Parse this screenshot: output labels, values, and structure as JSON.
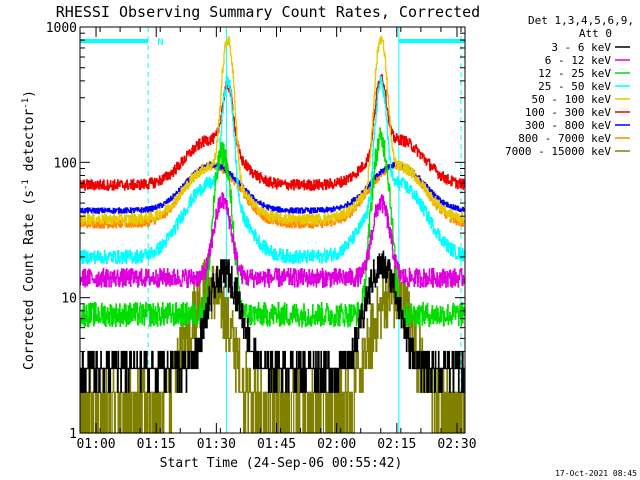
{
  "chart_data": {
    "type": "line",
    "title": "RHESSI Observing Summary Count Rates, Corrected",
    "xlabel": "Start Time (24-Sep-06 00:55:42)",
    "ylabel_parts": [
      "Corrected Count Rate (s",
      "-1",
      " detector",
      "-1",
      ")"
    ],
    "x_unit": "minutes of day (HH:MM)",
    "xlim": [
      56,
      152
    ],
    "ylim": [
      1,
      1000
    ],
    "y_scale": "log",
    "x_ticks": [
      {
        "value": 60,
        "label": "01:00"
      },
      {
        "value": 75,
        "label": "01:15"
      },
      {
        "value": 90,
        "label": "01:30"
      },
      {
        "value": 105,
        "label": "01:45"
      },
      {
        "value": 120,
        "label": "02:00"
      },
      {
        "value": 135,
        "label": "02:15"
      },
      {
        "value": 150,
        "label": "02:30"
      }
    ],
    "y_ticks": [
      {
        "value": 1,
        "label": "1"
      },
      {
        "value": 10,
        "label": "10"
      },
      {
        "value": 100,
        "label": "100"
      },
      {
        "value": 1000,
        "label": "1000"
      }
    ],
    "legend": {
      "placement": "right",
      "header": [
        "Det 1,3,4,5,6,9,",
        "Att 0"
      ]
    },
    "night_bars": [
      [
        56,
        73
      ],
      [
        135.5,
        152
      ]
    ],
    "night_label": "N",
    "night_label_x": 75.3,
    "dashed_lines": [
      73,
      151
    ],
    "solid_lines": [
      92.5,
      135.5
    ],
    "series": [
      {
        "name": "3 - 6 keV",
        "color": "#000000",
        "base": 3,
        "mod_amp": 0,
        "peaks": [
          {
            "t": 92.0,
            "amp": 12,
            "w": 4.5
          },
          {
            "t": 131.3,
            "amp": 14,
            "w": 4.5
          }
        ],
        "noise": 0.12
      },
      {
        "name": "6 - 12 keV",
        "color": "#dd00dd",
        "base": 14,
        "mod_amp": 0,
        "peaks": [
          {
            "t": 91.5,
            "amp": 38,
            "w": 2.5
          },
          {
            "t": 131.0,
            "amp": 36,
            "w": 2.5
          }
        ],
        "noise": 0.07
      },
      {
        "name": "12 - 25 keV",
        "color": "#00dd00",
        "base": 7.5,
        "mod_amp": 0,
        "peaks": [
          {
            "t": 91.5,
            "amp": 110,
            "w": 2.2
          },
          {
            "t": 131.0,
            "amp": 140,
            "w": 2.2
          }
        ],
        "noise": 0.09
      },
      {
        "name": "25 - 50 keV",
        "color": "#00ffff",
        "base": 20,
        "mod_amp": 50,
        "peaks": [
          {
            "t": 92.8,
            "amp": 340,
            "w": 1.5
          },
          {
            "t": 131.0,
            "amp": 330,
            "w": 1.5
          }
        ],
        "noise": 0.05
      },
      {
        "name": "50 - 100 keV",
        "color": "#e8c800",
        "base": 38,
        "mod_amp": 56,
        "peaks": [
          {
            "t": 92.8,
            "amp": 720,
            "w": 1.6
          },
          {
            "t": 131.0,
            "amp": 740,
            "w": 1.6
          }
        ],
        "noise": 0.04
      },
      {
        "name": "100 - 300 keV",
        "color": "#ee0000",
        "base": 68,
        "mod_amp": 80,
        "peaks": [
          {
            "t": 92.8,
            "amp": 240,
            "w": 1.6
          },
          {
            "t": 131.0,
            "amp": 300,
            "w": 1.6
          }
        ],
        "noise": 0.04
      },
      {
        "name": "300 - 800 keV",
        "color": "#0000ff",
        "base": 44,
        "mod_amp": 52,
        "peaks": [],
        "noise": 0.02
      },
      {
        "name": "800 - 7000 keV",
        "color": "#ff8800",
        "base": 35,
        "mod_amp": 60,
        "peaks": [],
        "noise": 0.03
      },
      {
        "name": "7000 - 15000 keV",
        "color": "#808000",
        "base": 1.6,
        "mod_amp": 0,
        "peaks": [
          {
            "t": 88.0,
            "amp": 10,
            "w": 5.5
          },
          {
            "t": 134.0,
            "amp": 9,
            "w": 5.5
          }
        ],
        "noise": 0.25
      }
    ],
    "grid": false
  },
  "footer": {
    "timestamp": "17-Oct-2021 08:45"
  }
}
